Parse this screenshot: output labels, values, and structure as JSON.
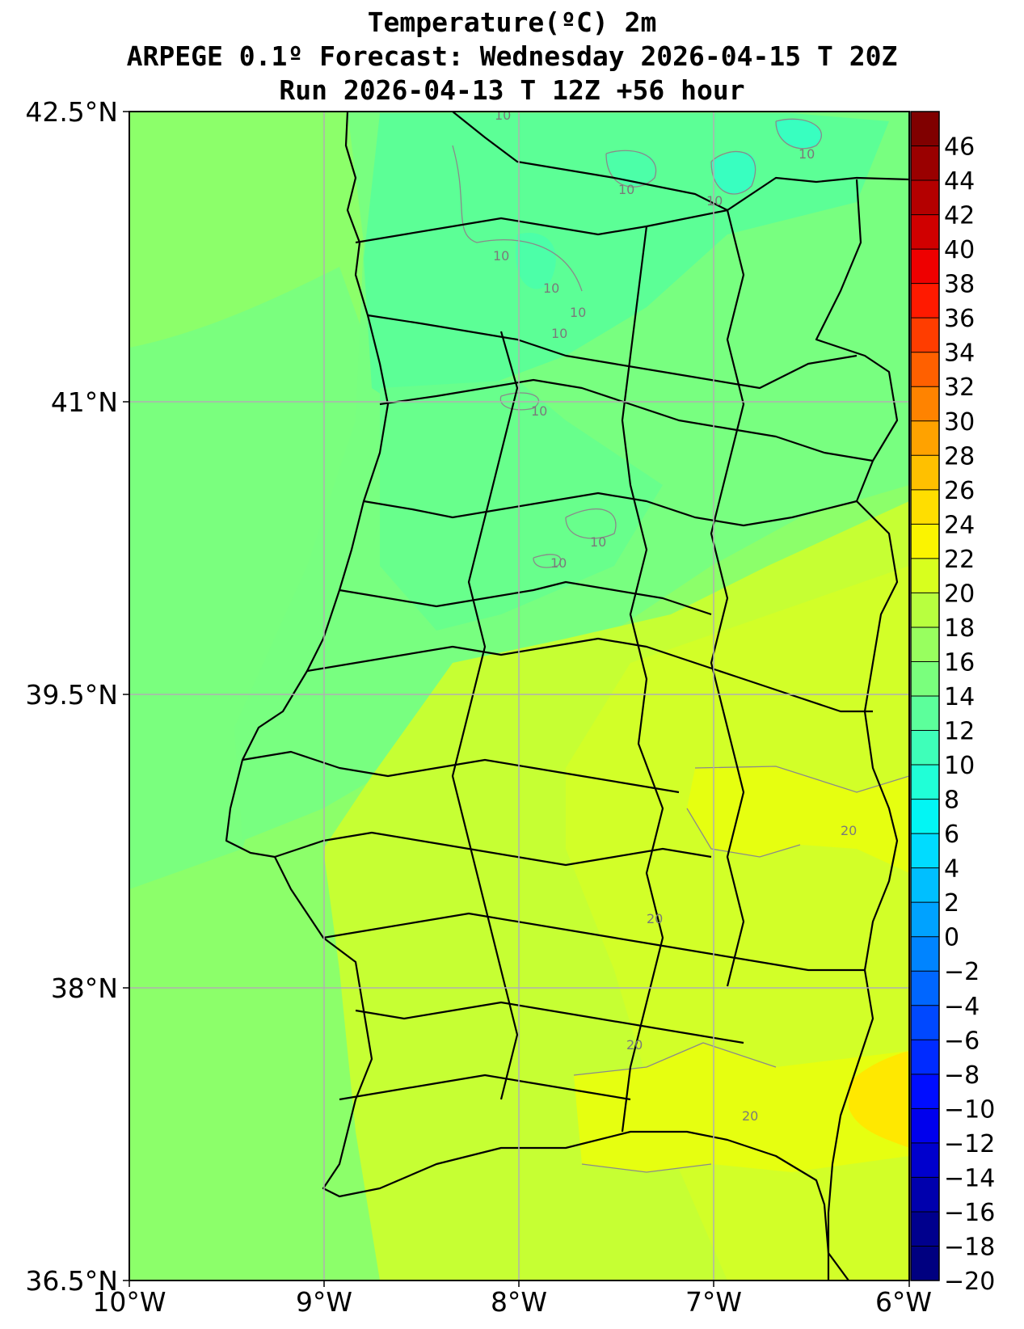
{
  "title": {
    "line1": "Temperature(ºC) 2m",
    "line2": "ARPEGE 0.1º Forecast: Wednesday 2026-04-15 T 20Z",
    "line3": "Run 2026-04-13 T 12Z +56 hour"
  },
  "axes": {
    "lat_ticks": [
      "42.5°N",
      "41°N",
      "39.5°N",
      "38°N",
      "36.5°N"
    ],
    "lon_ticks": [
      "10°W",
      "9°W",
      "8°W",
      "7°W",
      "6°W"
    ],
    "lon_range": [
      -10,
      -6
    ],
    "lat_range": [
      36.5,
      42.5
    ],
    "grid": true
  },
  "colorbar": {
    "labels": [
      "46",
      "44",
      "42",
      "40",
      "38",
      "36",
      "34",
      "32",
      "30",
      "28",
      "26",
      "24",
      "22",
      "20",
      "18",
      "16",
      "14",
      "12",
      "10",
      "8",
      "6",
      "4",
      "2",
      "0",
      "−2",
      "−4",
      "−6",
      "−8",
      "−10",
      "−12",
      "−14",
      "−16",
      "−18",
      "−20"
    ],
    "colors": [
      "#800000",
      "#9a0000",
      "#b40000",
      "#d00000",
      "#ee0000",
      "#ff1a00",
      "#ff3d00",
      "#ff6000",
      "#ff8300",
      "#ffa200",
      "#ffc000",
      "#ffde00",
      "#fbf400",
      "#d8ff1e",
      "#b8ff3f",
      "#98ff5f",
      "#7aff7d",
      "#5cff9b",
      "#3effb9",
      "#20ffd7",
      "#02f6f4",
      "#00dcff",
      "#00bfff",
      "#00a2ff",
      "#0084ff",
      "#0066ff",
      "#0048ff",
      "#002bff",
      "#000dff",
      "#0000ed",
      "#0000cd",
      "#0000ad",
      "#00008d",
      "#000080"
    ]
  },
  "contour_labels": [
    "10",
    "10",
    "10",
    "10",
    "10",
    "10",
    "10",
    "10",
    "10",
    "10",
    "10",
    "20",
    "20",
    "20",
    "20"
  ],
  "map_colors": {
    "sea": "#8cff6a",
    "coast_band": "#7aff7e",
    "north_cool": "#5cff96",
    "north_cold": "#38ffc0",
    "south_warm": "#c6ff33",
    "south_hot": "#e6ff10",
    "hot_spot": "#ffe800",
    "borders": "#000000",
    "grid": "#b0b0b0"
  }
}
